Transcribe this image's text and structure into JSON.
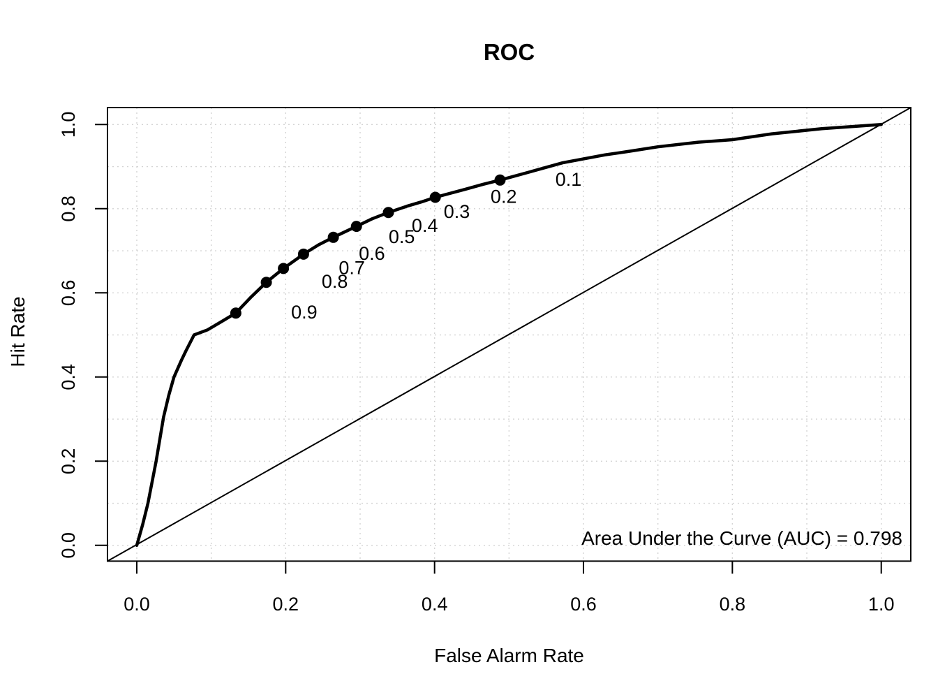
{
  "title": "ROC",
  "annotation_auc": "Area Under the Curve (AUC) = 0.798",
  "chart_data": {
    "type": "line",
    "title": "ROC",
    "xlabel": "False Alarm Rate",
    "ylabel": "Hit Rate",
    "xlim": [
      0,
      1
    ],
    "ylim": [
      0,
      1
    ],
    "grid": "on",
    "grid_step": 0.1,
    "grid_color": "#d3d3d3",
    "curve_color": "#000000",
    "auc": 0.798,
    "ticks": {
      "x_values": [
        0.0,
        0.2,
        0.4,
        0.6,
        0.8,
        1.0
      ],
      "x_labels": [
        "0.0",
        "0.2",
        "0.4",
        "0.6",
        "0.8",
        "1.0"
      ],
      "y_values": [
        0.0,
        0.2,
        0.4,
        0.6,
        0.8,
        1.0
      ],
      "y_labels": [
        "0.0",
        "0.2",
        "0.4",
        "0.6",
        "0.8",
        "1.0"
      ]
    },
    "series": [
      {
        "name": "ROC curve",
        "style": "thick solid",
        "x": [
          0.0,
          0.008,
          0.015,
          0.026,
          0.036,
          0.043,
          0.05,
          0.06,
          0.066,
          0.077,
          0.095,
          0.115,
          0.133,
          0.154,
          0.174,
          0.197,
          0.224,
          0.244,
          0.264,
          0.295,
          0.316,
          0.338,
          0.363,
          0.382,
          0.401,
          0.441,
          0.465,
          0.488,
          0.525,
          0.572,
          0.629,
          0.66,
          0.7,
          0.754,
          0.8,
          0.853,
          0.92,
          1.0
        ],
        "y": [
          0.0,
          0.05,
          0.1,
          0.2,
          0.305,
          0.357,
          0.4,
          0.44,
          0.462,
          0.5,
          0.512,
          0.533,
          0.552,
          0.591,
          0.625,
          0.658,
          0.692,
          0.714,
          0.732,
          0.758,
          0.776,
          0.791,
          0.806,
          0.816,
          0.827,
          0.846,
          0.858,
          0.868,
          0.886,
          0.909,
          0.928,
          0.936,
          0.947,
          0.958,
          0.964,
          0.978,
          0.99,
          1.0
        ]
      },
      {
        "name": "chance diagonal",
        "style": "thin solid",
        "x": [
          0,
          1
        ],
        "y": [
          0,
          1
        ]
      }
    ],
    "threshold_points": [
      {
        "label": "0.1",
        "x": 0.488,
        "y": 0.868
      },
      {
        "label": "0.2",
        "x": 0.401,
        "y": 0.827
      },
      {
        "label": "0.3",
        "x": 0.338,
        "y": 0.791
      },
      {
        "label": "0.4",
        "x": 0.295,
        "y": 0.758
      },
      {
        "label": "0.5",
        "x": 0.264,
        "y": 0.732
      },
      {
        "label": "0.6",
        "x": 0.224,
        "y": 0.692
      },
      {
        "label": "0.7",
        "x": 0.197,
        "y": 0.658
      },
      {
        "label": "0.8",
        "x": 0.174,
        "y": 0.625
      },
      {
        "label": "0.9",
        "x": 0.133,
        "y": 0.552
      }
    ],
    "annotations": [
      {
        "text": "Area Under the Curve (AUC) = 0.798",
        "position": "bottom-right"
      }
    ]
  }
}
